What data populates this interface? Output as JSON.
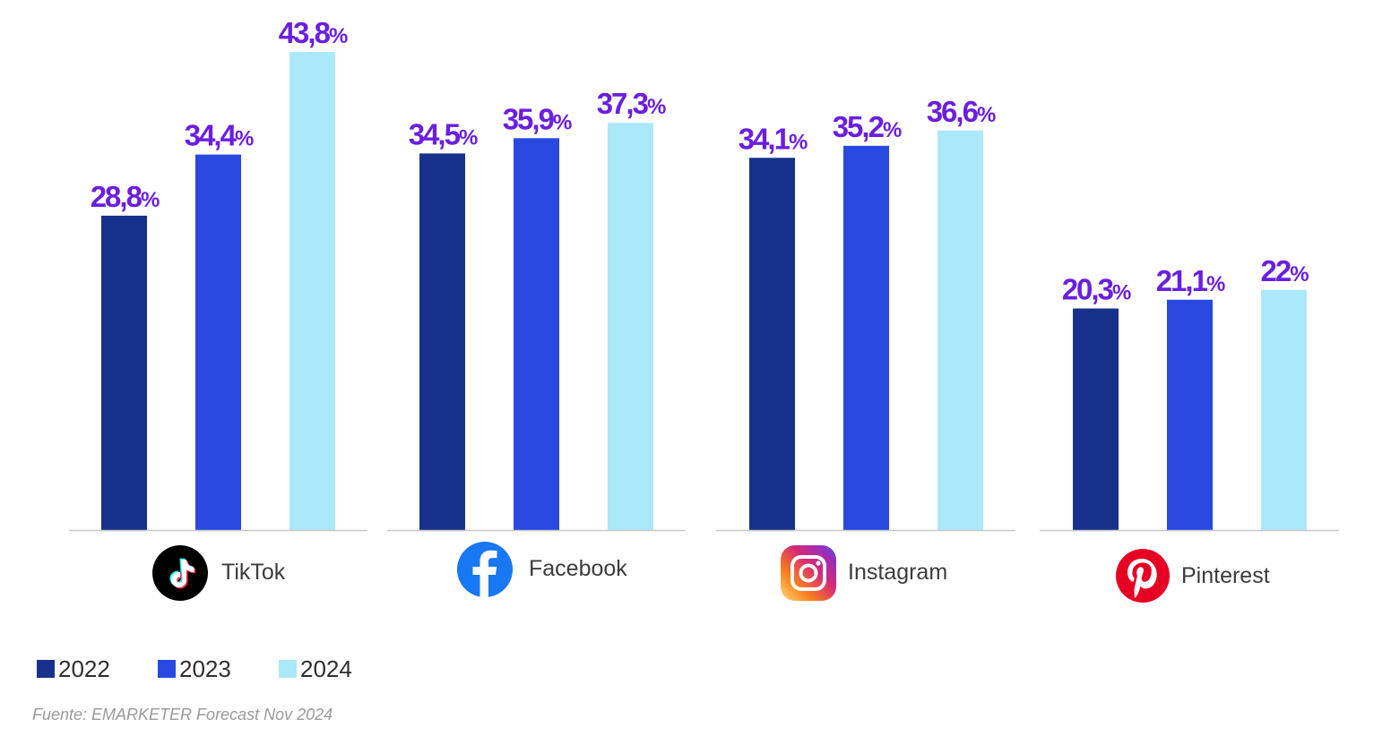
{
  "chart_data": {
    "type": "bar",
    "categories": [
      "TikTok",
      "Facebook",
      "Instagram",
      "Pinterest"
    ],
    "series": [
      {
        "name": "2022",
        "values": [
          28.8,
          34.5,
          34.1,
          20.3
        ],
        "color": "#17318a"
      },
      {
        "name": "2023",
        "values": [
          34.4,
          35.9,
          35.2,
          21.1
        ],
        "color": "#2848e0"
      },
      {
        "name": "2024",
        "values": [
          43.8,
          37.3,
          36.6,
          22.0
        ],
        "color": "#abe8fa"
      }
    ],
    "value_labels": [
      [
        "28,8",
        "34,4",
        "43,8"
      ],
      [
        "34,5",
        "35,9",
        "37,3"
      ],
      [
        "34,1",
        "35,2",
        "36,6"
      ],
      [
        "20,3",
        "21,1",
        "22"
      ]
    ],
    "value_suffix": "%",
    "ylim": [
      0,
      45
    ],
    "grid": false,
    "legend_position": "bottom-left",
    "label_color": "#6a1fe0"
  },
  "icons": [
    "tiktok-logo-icon",
    "facebook-logo-icon",
    "instagram-logo-icon",
    "pinterest-logo-icon"
  ],
  "source": "Fuente: EMARKETER Forecast Nov 2024"
}
